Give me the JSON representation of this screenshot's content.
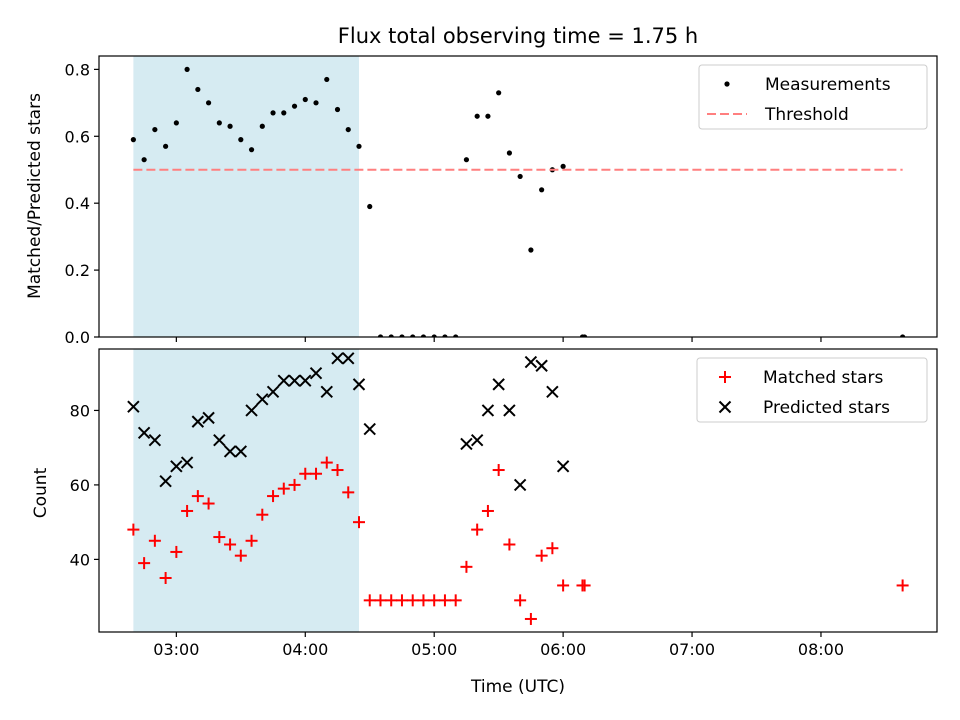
{
  "chart_data": [
    {
      "type": "scatter",
      "title": "Flux total observing time = 1.75 h",
      "xlabel": "",
      "ylabel": "Matched/Predicted stars",
      "xlim": [
        "02:24",
        "08:54"
      ],
      "ylim": [
        0,
        0.84
      ],
      "x_ticks": [
        "03:00",
        "04:00",
        "05:00",
        "06:00",
        "07:00",
        "08:00"
      ],
      "y_ticks": [
        "0.0",
        "0.2",
        "0.4",
        "0.6",
        "0.8"
      ],
      "shaded_span": {
        "x": [
          "02:40",
          "04:25"
        ],
        "color": "#add8e6"
      },
      "legend_position": "top-right",
      "series": [
        {
          "name": "Measurements",
          "marker": "dot",
          "color": "#000000",
          "points": [
            [
              "02:40",
              0.59
            ],
            [
              "02:45",
              0.53
            ],
            [
              "02:50",
              0.62
            ],
            [
              "02:55",
              0.57
            ],
            [
              "03:00",
              0.64
            ],
            [
              "03:05",
              0.8
            ],
            [
              "03:10",
              0.74
            ],
            [
              "03:15",
              0.7
            ],
            [
              "03:20",
              0.64
            ],
            [
              "03:25",
              0.63
            ],
            [
              "03:30",
              0.59
            ],
            [
              "03:35",
              0.56
            ],
            [
              "03:40",
              0.63
            ],
            [
              "03:45",
              0.67
            ],
            [
              "03:50",
              0.67
            ],
            [
              "03:55",
              0.69
            ],
            [
              "04:00",
              0.71
            ],
            [
              "04:05",
              0.7
            ],
            [
              "04:10",
              0.77
            ],
            [
              "04:15",
              0.68
            ],
            [
              "04:20",
              0.62
            ],
            [
              "04:25",
              0.57
            ],
            [
              "04:30",
              0.39
            ],
            [
              "04:35",
              0.0
            ],
            [
              "04:40",
              0.0
            ],
            [
              "04:45",
              0.0
            ],
            [
              "04:50",
              0.0
            ],
            [
              "04:55",
              0.0
            ],
            [
              "05:00",
              0.0
            ],
            [
              "05:05",
              0.0
            ],
            [
              "05:10",
              0.0
            ],
            [
              "05:15",
              0.53
            ],
            [
              "05:20",
              0.66
            ],
            [
              "05:25",
              0.66
            ],
            [
              "05:30",
              0.73
            ],
            [
              "05:35",
              0.55
            ],
            [
              "05:40",
              0.48
            ],
            [
              "05:45",
              0.26
            ],
            [
              "05:50",
              0.44
            ],
            [
              "05:55",
              0.5
            ],
            [
              "06:00",
              0.51
            ],
            [
              "06:09",
              0.0
            ],
            [
              "06:10",
              0.0
            ],
            [
              "08:38",
              0.0
            ]
          ]
        },
        {
          "name": "Threshold",
          "marker": "dashed-line",
          "color": "#ff7f7f",
          "points": [
            [
              "02:40",
              0.5
            ],
            [
              "08:38",
              0.5
            ]
          ]
        }
      ]
    },
    {
      "type": "scatter",
      "title": "",
      "xlabel": "Time (UTC)",
      "ylabel": "Count",
      "xlim": [
        "02:24",
        "08:54"
      ],
      "ylim": [
        20.5,
        96.5
      ],
      "x_ticks": [
        "03:00",
        "04:00",
        "05:00",
        "06:00",
        "07:00",
        "08:00"
      ],
      "y_ticks": [
        "40",
        "60",
        "80"
      ],
      "shaded_span": {
        "x": [
          "02:40",
          "04:25"
        ],
        "color": "#add8e6"
      },
      "legend_position": "top-right",
      "series": [
        {
          "name": "Matched stars",
          "marker": "plus",
          "color": "#ff0000",
          "points": [
            [
              "02:40",
              48
            ],
            [
              "02:45",
              39
            ],
            [
              "02:50",
              45
            ],
            [
              "02:55",
              35
            ],
            [
              "03:00",
              42
            ],
            [
              "03:05",
              53
            ],
            [
              "03:10",
              57
            ],
            [
              "03:15",
              55
            ],
            [
              "03:20",
              46
            ],
            [
              "03:25",
              44
            ],
            [
              "03:30",
              41
            ],
            [
              "03:35",
              45
            ],
            [
              "03:40",
              52
            ],
            [
              "03:45",
              57
            ],
            [
              "03:50",
              59
            ],
            [
              "03:55",
              60
            ],
            [
              "04:00",
              63
            ],
            [
              "04:05",
              63
            ],
            [
              "04:10",
              66
            ],
            [
              "04:15",
              64
            ],
            [
              "04:20",
              58
            ],
            [
              "04:25",
              50
            ],
            [
              "04:30",
              29
            ],
            [
              "04:35",
              29
            ],
            [
              "04:40",
              29
            ],
            [
              "04:45",
              29
            ],
            [
              "04:50",
              29
            ],
            [
              "04:55",
              29
            ],
            [
              "05:00",
              29
            ],
            [
              "05:05",
              29
            ],
            [
              "05:10",
              29
            ],
            [
              "05:15",
              38
            ],
            [
              "05:20",
              48
            ],
            [
              "05:25",
              53
            ],
            [
              "05:30",
              64
            ],
            [
              "05:35",
              44
            ],
            [
              "05:40",
              29
            ],
            [
              "05:45",
              24
            ],
            [
              "05:50",
              41
            ],
            [
              "05:55",
              43
            ],
            [
              "06:00",
              33
            ],
            [
              "06:09",
              33
            ],
            [
              "06:10",
              33
            ],
            [
              "08:38",
              33
            ]
          ]
        },
        {
          "name": "Predicted stars",
          "marker": "x",
          "color": "#000000",
          "points": [
            [
              "02:40",
              81
            ],
            [
              "02:45",
              74
            ],
            [
              "02:50",
              72
            ],
            [
              "02:55",
              61
            ],
            [
              "03:00",
              65
            ],
            [
              "03:05",
              66
            ],
            [
              "03:10",
              77
            ],
            [
              "03:15",
              78
            ],
            [
              "03:20",
              72
            ],
            [
              "03:25",
              69
            ],
            [
              "03:30",
              69
            ],
            [
              "03:35",
              80
            ],
            [
              "03:40",
              83
            ],
            [
              "03:45",
              85
            ],
            [
              "03:50",
              88
            ],
            [
              "03:55",
              88
            ],
            [
              "04:00",
              88
            ],
            [
              "04:05",
              90
            ],
            [
              "04:10",
              85
            ],
            [
              "04:15",
              94
            ],
            [
              "04:20",
              94
            ],
            [
              "04:25",
              87
            ],
            [
              "04:30",
              75
            ],
            [
              "05:15",
              71
            ],
            [
              "05:20",
              72
            ],
            [
              "05:25",
              80
            ],
            [
              "05:30",
              87
            ],
            [
              "05:35",
              80
            ],
            [
              "05:40",
              60
            ],
            [
              "05:45",
              93
            ],
            [
              "05:50",
              92
            ],
            [
              "05:55",
              85
            ],
            [
              "06:00",
              65
            ]
          ]
        }
      ]
    }
  ]
}
